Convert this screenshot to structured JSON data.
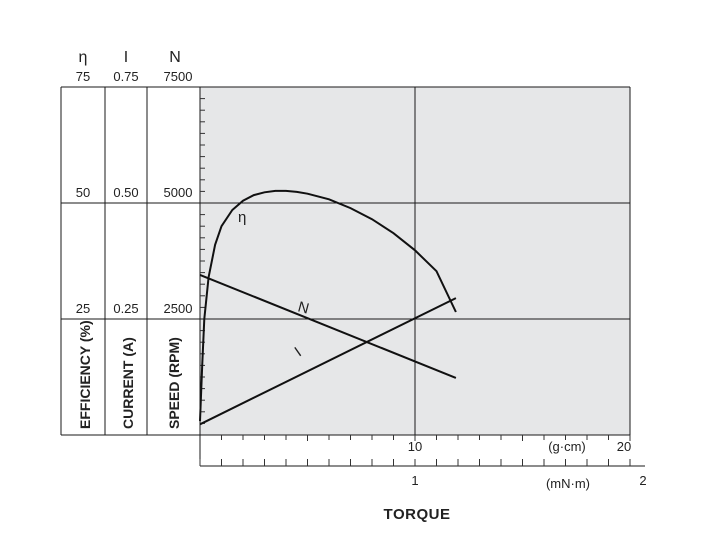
{
  "chart_data": {
    "type": "line",
    "title": "",
    "x_primary": {
      "unit": "(g·cm)",
      "ticks": [
        "10",
        "20"
      ],
      "range": [
        0,
        20
      ],
      "minor_step": 1
    },
    "x_secondary": {
      "unit": "(mN·m)",
      "ticks": [
        "1",
        "2"
      ],
      "range": [
        0,
        2
      ],
      "minor_step": 0.1
    },
    "xlabel": "TORQUE",
    "y_axes": [
      {
        "symbol": "η",
        "label": "EFFICIENCY (%)",
        "ticks": [
          "25",
          "50",
          "75"
        ],
        "range": [
          0,
          75
        ]
      },
      {
        "symbol": "I",
        "label": "CURRENT (A)",
        "ticks": [
          "0.25",
          "0.50",
          "0.75"
        ],
        "range": [
          0,
          0.75
        ]
      },
      {
        "symbol": "N",
        "label": "SPEED (RPM)",
        "ticks": [
          "2500",
          "5000",
          "7500"
        ],
        "range": [
          0,
          7500
        ]
      }
    ],
    "grid": true,
    "series": [
      {
        "name": "η",
        "axis": "EFFICIENCY (%)",
        "x": [
          0,
          0.1,
          0.2,
          0.4,
          0.7,
          1.0,
          1.5,
          2.0,
          2.5,
          3.0,
          3.5,
          4.0,
          4.5,
          5.0,
          6.0,
          7.0,
          8.0,
          9.0,
          10.0,
          11.0,
          11.9
        ],
        "y": [
          3,
          15,
          25,
          34,
          41,
          45,
          48.5,
          50.5,
          51.7,
          52.3,
          52.6,
          52.6,
          52.4,
          52,
          50.8,
          48.9,
          46.5,
          43.5,
          39.8,
          35.3,
          26.5
        ]
      },
      {
        "name": "I",
        "axis": "CURRENT (A)",
        "x": [
          0,
          11.9
        ],
        "y": [
          0.023,
          0.295
        ]
      },
      {
        "name": "N",
        "axis": "SPEED (RPM)",
        "x": [
          0,
          11.9
        ],
        "y": [
          3450,
          1230
        ]
      }
    ]
  }
}
